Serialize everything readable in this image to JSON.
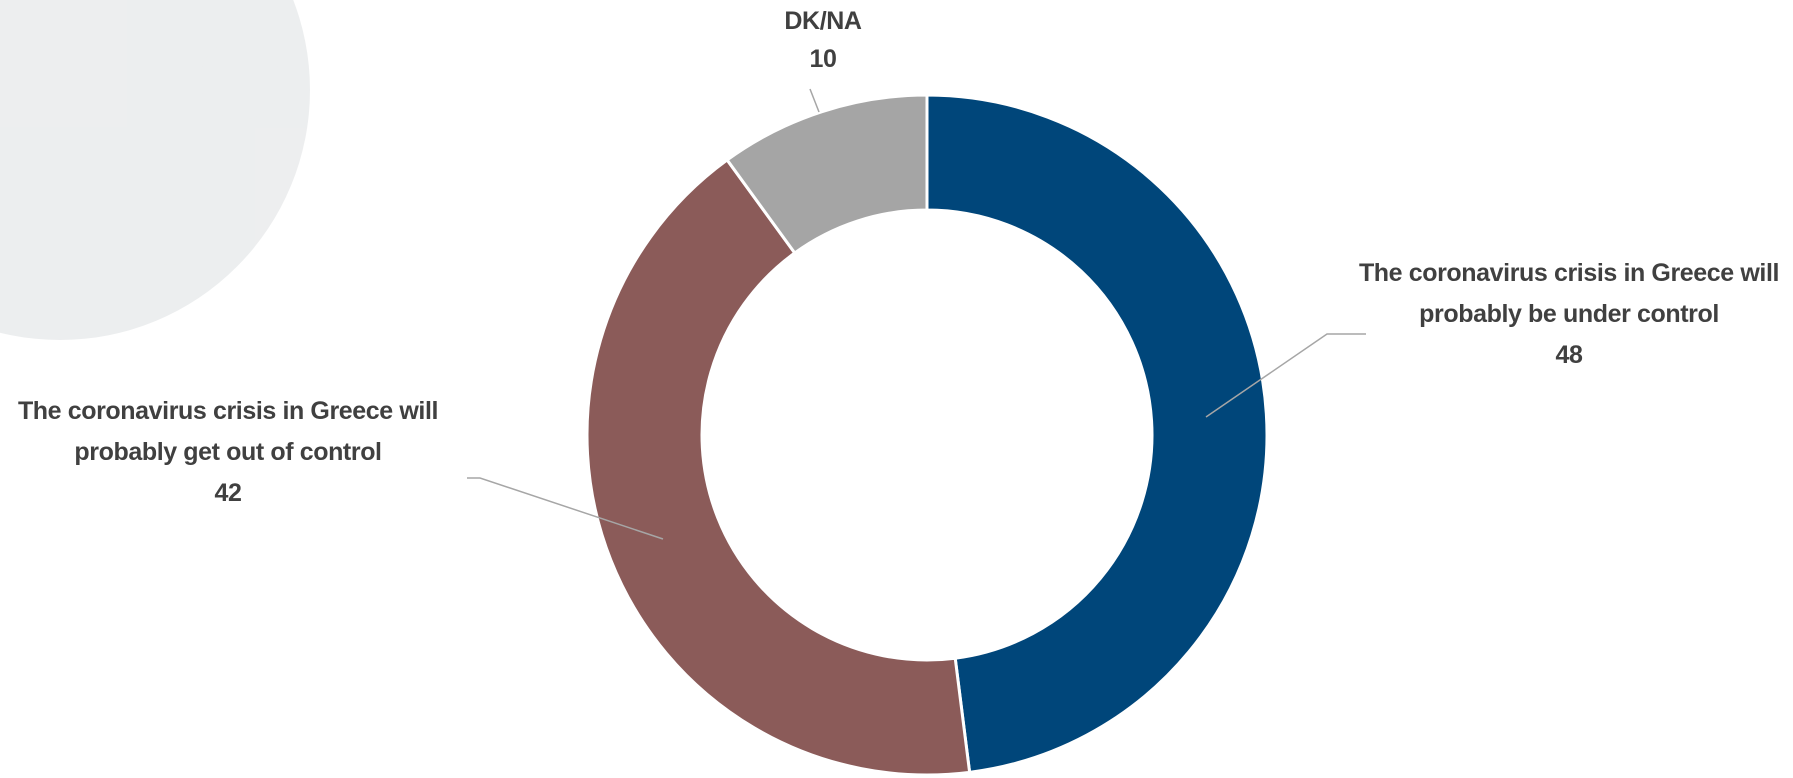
{
  "chart_data": {
    "type": "donut",
    "categories": [
      "The coronavirus crisis in Greece will probably be under control",
      "The coronavirus crisis in Greece will probably get out of control",
      "DK/NA"
    ],
    "values": [
      48,
      42,
      10
    ],
    "colors": [
      "#00467a",
      "#8b5b59",
      "#a5a5a5"
    ]
  }
}
